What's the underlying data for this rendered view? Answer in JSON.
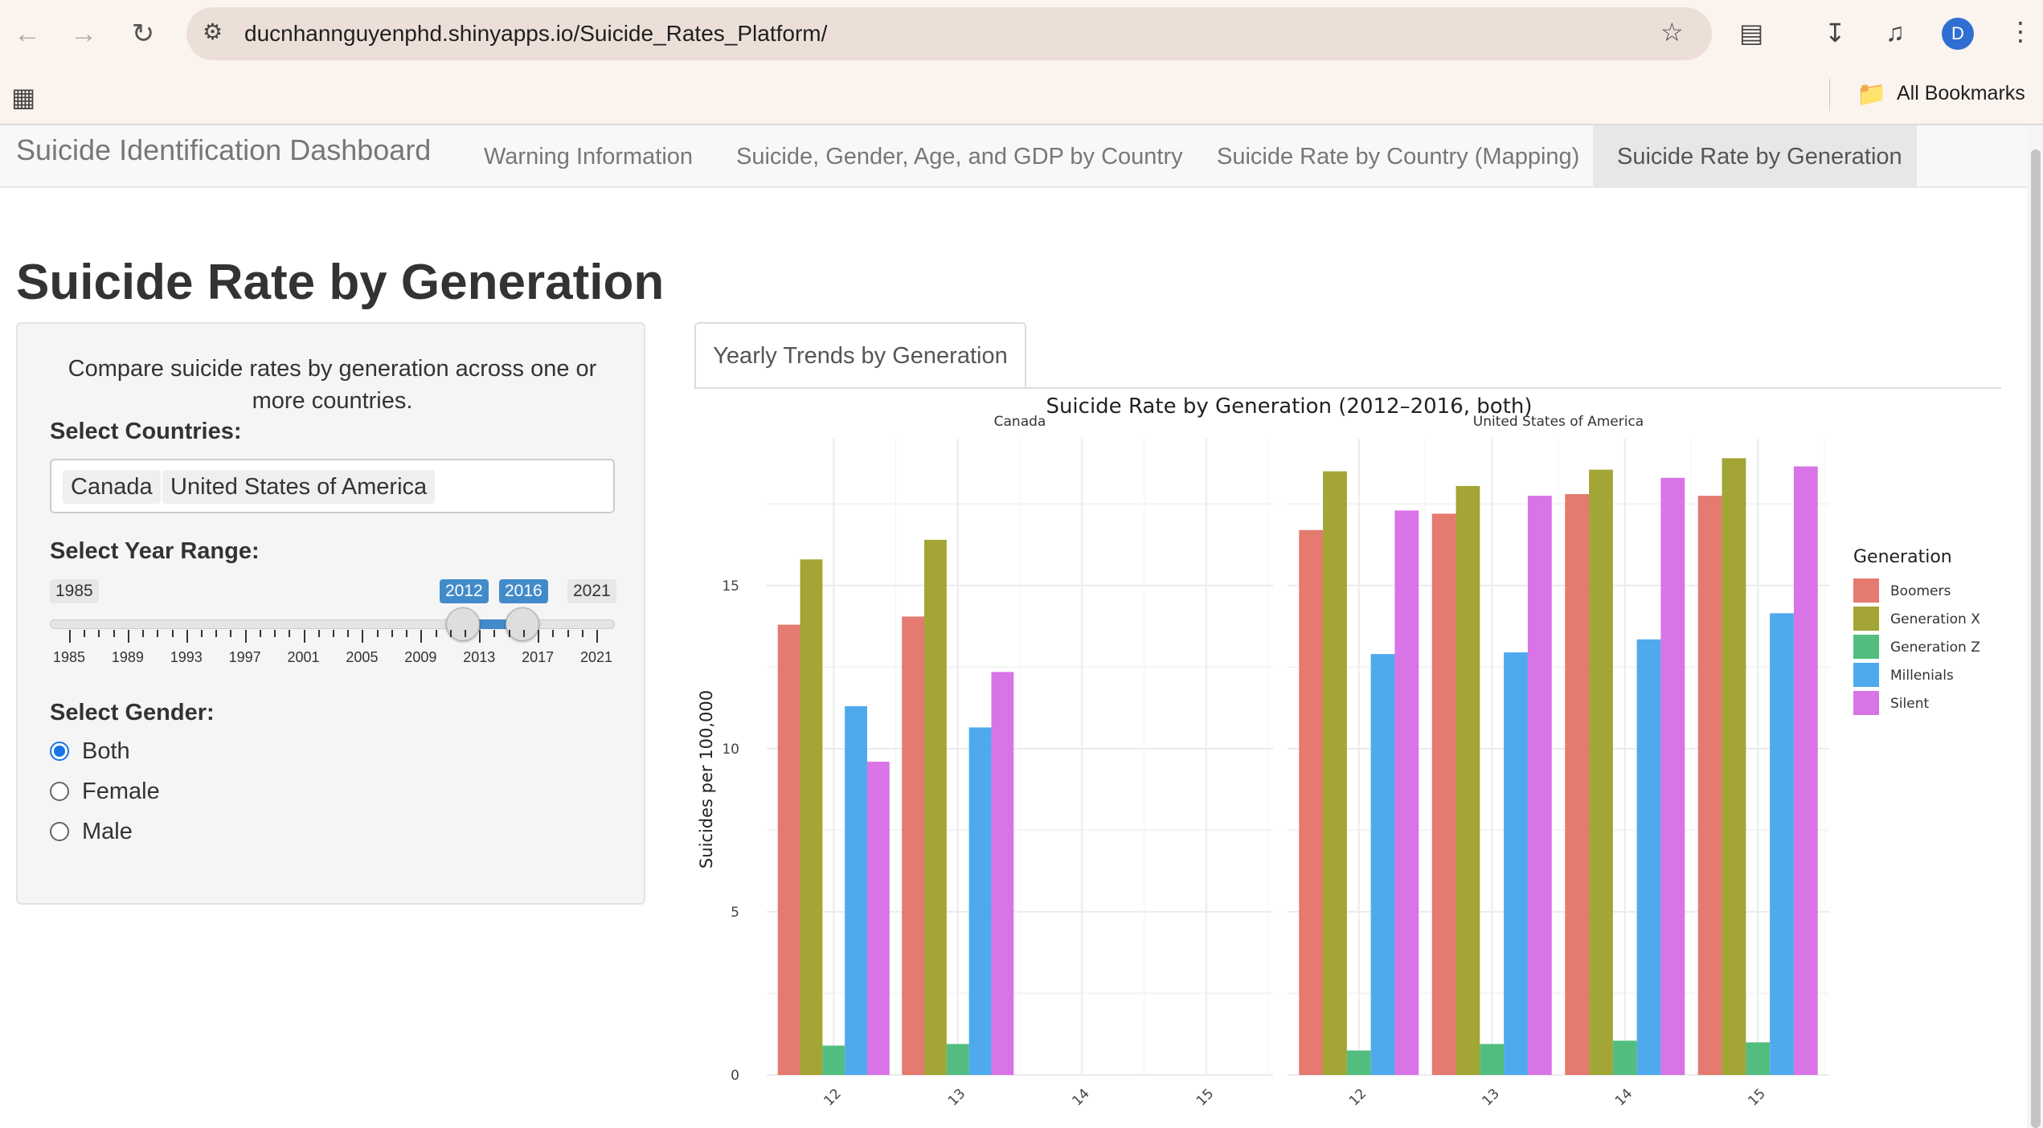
{
  "browser": {
    "url_host": "ducnhannguyenphd.shinyapps.io",
    "url_path": "/Suicide_Rates_Platform/",
    "bookmarks_label": "All Bookmarks",
    "profile_initial": "D"
  },
  "navbar": {
    "brand": "Suicide Identification Dashboard",
    "tabs": [
      {
        "label": "Warning Information"
      },
      {
        "label": "Suicide, Gender, Age, and GDP by Country"
      },
      {
        "label": "Suicide Rate by Country (Mapping)"
      },
      {
        "label": "Suicide Rate by Generation"
      }
    ]
  },
  "page": {
    "title": "Suicide Rate by Generation"
  },
  "sidebar": {
    "description": "Compare suicide rates by generation across one or more countries.",
    "countries_label": "Select Countries:",
    "selected_countries": [
      "Canada",
      "United States of America"
    ],
    "year_label": "Select Year Range:",
    "year_min": "1985",
    "year_max": "2021",
    "year_from": "2012",
    "year_to": "2016",
    "year_ticks": [
      "1985",
      "1989",
      "1993",
      "1997",
      "2001",
      "2005",
      "2009",
      "2013",
      "2017",
      "2021"
    ],
    "gender_label": "Select Gender:",
    "gender_options": [
      "Both",
      "Female",
      "Male"
    ],
    "gender_selected": "Both"
  },
  "main": {
    "tab_label": "Yearly Trends by Generation"
  },
  "chart_data": {
    "type": "bar",
    "title": "Suicide Rate by Generation (2012–2016, both)",
    "ylabel": "Suicides per 100,000",
    "xlabel": "",
    "ylim": [
      0,
      19.5
    ],
    "yticks": [
      0,
      5,
      10,
      15
    ],
    "legend_title": "Generation",
    "legend_position": "right",
    "series_names": [
      "Boomers",
      "Generation X",
      "Generation Z",
      "Millenials",
      "Silent"
    ],
    "colors": [
      "#e57a70",
      "#a3a534",
      "#52bd7f",
      "#4eaaec",
      "#d874e6"
    ],
    "facets": [
      {
        "name": "Canada",
        "categories": [
          "2012",
          "2013",
          "2014",
          "2015"
        ],
        "tick_labels": [
          "12",
          "13",
          "14",
          "15"
        ],
        "values": [
          [
            13.8,
            15.8,
            0.9,
            11.3,
            9.6
          ],
          [
            14.05,
            16.4,
            0.95,
            10.65,
            12.35
          ],
          null,
          null
        ]
      },
      {
        "name": "United States of America",
        "categories": [
          "2012",
          "2013",
          "2014",
          "2015"
        ],
        "tick_labels": [
          "12",
          "13",
          "14",
          "15"
        ],
        "values": [
          [
            16.7,
            18.5,
            0.75,
            12.9,
            17.3
          ],
          [
            17.2,
            18.05,
            0.95,
            12.95,
            17.75
          ],
          [
            17.8,
            18.55,
            1.05,
            13.35,
            18.3
          ],
          [
            17.75,
            18.9,
            1.0,
            14.15,
            18.65
          ]
        ]
      }
    ]
  }
}
